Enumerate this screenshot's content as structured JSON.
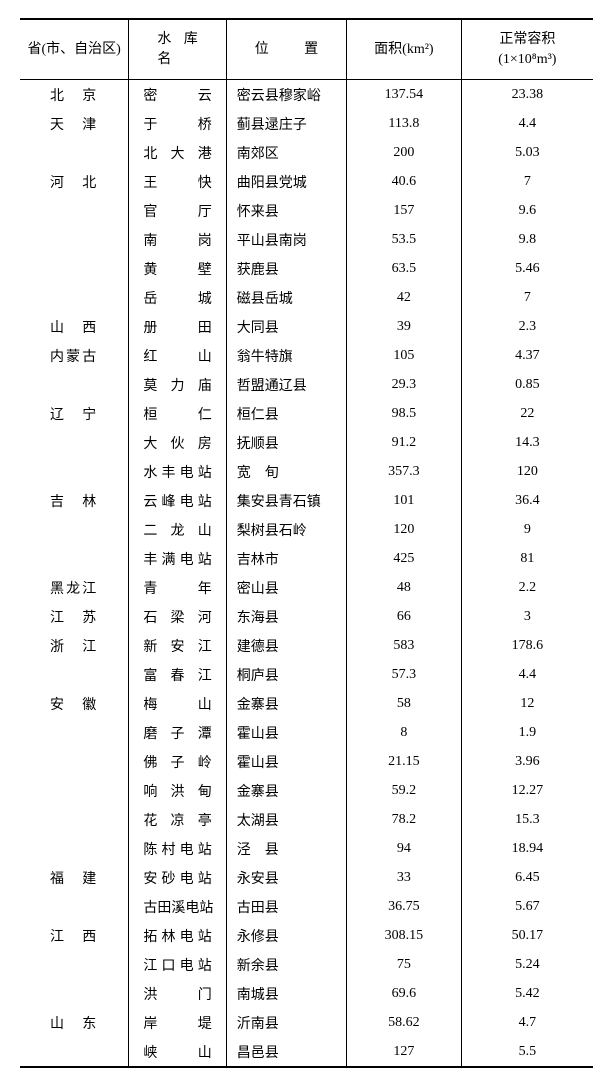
{
  "headers": {
    "province": "省(市、自治区)",
    "reservoir_lead": "水",
    "reservoir_mid": "库",
    "reservoir_tail": "名",
    "location_lead": "位",
    "location_tail": "置",
    "area": "面积(km²)",
    "volume_l1": "正常容积",
    "volume_l2": "(1×10⁸m³)"
  },
  "rows": [
    {
      "province": "北　京",
      "name": "密　　云",
      "loc": "密云县穆家峪",
      "area": "137.54",
      "vol": "23.38"
    },
    {
      "province": "天　津",
      "name": "于　　桥",
      "loc": "蓟县逯庄子",
      "area": "113.8",
      "vol": "4.4"
    },
    {
      "province": "",
      "name": "北 大 港",
      "loc": "南郊区",
      "area": "200",
      "vol": "5.03"
    },
    {
      "province": "河　北",
      "name": "王　　快",
      "loc": "曲阳县党城",
      "area": "40.6",
      "vol": "7"
    },
    {
      "province": "",
      "name": "官　　厅",
      "loc": "怀来县",
      "area": "157",
      "vol": "9.6"
    },
    {
      "province": "",
      "name": "南　　岗",
      "loc": "平山县南岗",
      "area": "53.5",
      "vol": "9.8"
    },
    {
      "province": "",
      "name": "黄　　壁",
      "loc": "获鹿县",
      "area": "63.5",
      "vol": "5.46"
    },
    {
      "province": "",
      "name": "岳　　城",
      "loc": "磁县岳城",
      "area": "42",
      "vol": "7"
    },
    {
      "province": "山　西",
      "name": "册　　田",
      "loc": "大同县",
      "area": "39",
      "vol": "2.3"
    },
    {
      "province": "内蒙古",
      "name": "红　　山",
      "loc": "翁牛特旗",
      "area": "105",
      "vol": "4.37"
    },
    {
      "province": "",
      "name": "莫 力 庙",
      "loc": "哲盟通辽县",
      "area": "29.3",
      "vol": "0.85"
    },
    {
      "province": "辽　宁",
      "name": "桓　　仁",
      "loc": "桓仁县",
      "area": "98.5",
      "vol": "22"
    },
    {
      "province": "",
      "name": "大 伙 房",
      "loc": "抚顺县",
      "area": "91.2",
      "vol": "14.3"
    },
    {
      "province": "",
      "name": "水丰电站",
      "loc": "宽　旬",
      "area": "357.3",
      "vol": "120"
    },
    {
      "province": "吉　林",
      "name": "云峰电站",
      "loc": "集安县青石镇",
      "area": "101",
      "vol": "36.4"
    },
    {
      "province": "",
      "name": "二 龙 山",
      "loc": "梨树县石岭",
      "area": "120",
      "vol": "9"
    },
    {
      "province": "",
      "name": "丰满电站",
      "loc": "吉林市",
      "area": "425",
      "vol": "81"
    },
    {
      "province": "黑龙江",
      "name": "青　　年",
      "loc": "密山县",
      "area": "48",
      "vol": "2.2"
    },
    {
      "province": "江　苏",
      "name": "石 梁 河",
      "loc": "东海县",
      "area": "66",
      "vol": "3"
    },
    {
      "province": "浙　江",
      "name": "新 安 江",
      "loc": "建德县",
      "area": "583",
      "vol": "178.6"
    },
    {
      "province": "",
      "name": "富 春 江",
      "loc": "桐庐县",
      "area": "57.3",
      "vol": "4.4"
    },
    {
      "province": "安　徽",
      "name": "梅　　山",
      "loc": "金寨县",
      "area": "58",
      "vol": "12"
    },
    {
      "province": "",
      "name": "磨 子 潭",
      "loc": "霍山县",
      "area": "8",
      "vol": "1.9"
    },
    {
      "province": "",
      "name": "佛 子 岭",
      "loc": "霍山县",
      "area": "21.15",
      "vol": "3.96"
    },
    {
      "province": "",
      "name": "响 洪 甸",
      "loc": "金寨县",
      "area": "59.2",
      "vol": "12.27"
    },
    {
      "province": "",
      "name": "花 凉 亭",
      "loc": "太湖县",
      "area": "78.2",
      "vol": "15.3"
    },
    {
      "province": "",
      "name": "陈村电站",
      "loc": "泾　县",
      "area": "94",
      "vol": "18.94"
    },
    {
      "province": "福　建",
      "name": "安砂电站",
      "loc": "永安县",
      "area": "33",
      "vol": "6.45"
    },
    {
      "province": "",
      "name": "古田溪电站",
      "loc": "古田县",
      "area": "36.75",
      "vol": "5.67"
    },
    {
      "province": "江　西",
      "name": "拓林电站",
      "loc": "永修县",
      "area": "308.15",
      "vol": "50.17"
    },
    {
      "province": "",
      "name": "江口电站",
      "loc": "新余县",
      "area": "75",
      "vol": "5.24"
    },
    {
      "province": "",
      "name": "洪　　门",
      "loc": "南城县",
      "area": "69.6",
      "vol": "5.42"
    },
    {
      "province": "山　东",
      "name": "岸　　堤",
      "loc": "沂南县",
      "area": "58.62",
      "vol": "4.7"
    },
    {
      "province": "",
      "name": "峡　　山",
      "loc": "昌邑县",
      "area": "127",
      "vol": "5.5"
    }
  ]
}
